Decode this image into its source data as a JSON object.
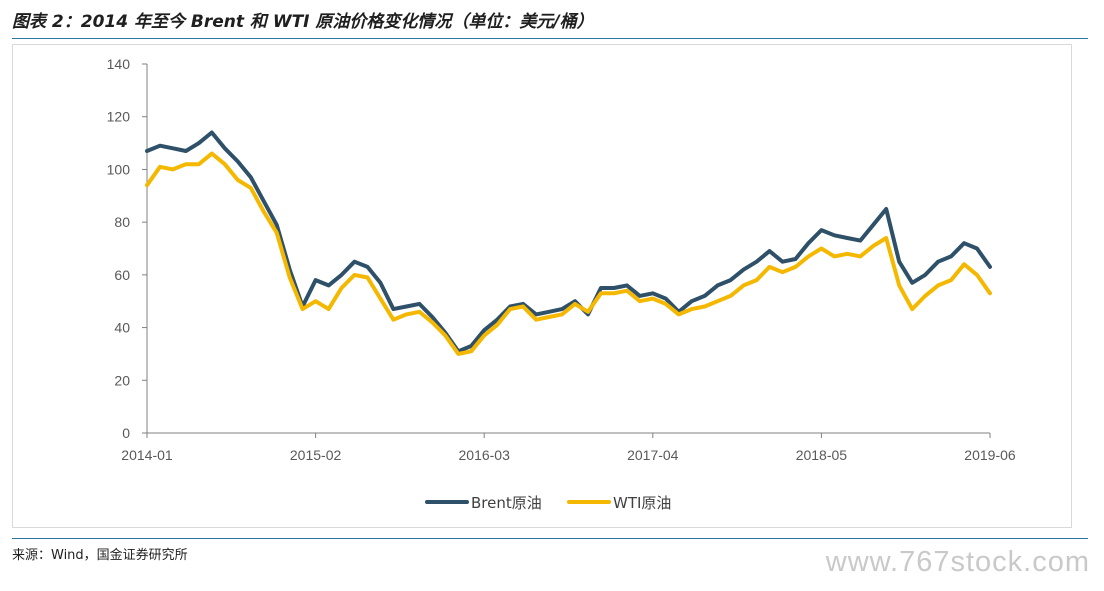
{
  "title": "图表 2：2014 年至今 Brent 和 WTI 原油价格变化情况（单位：美元/桶）",
  "source": "来源：Wind，国金证券研究所",
  "watermark": "www.767stock.com",
  "colors": {
    "brent": "#2e5068",
    "wti": "#f5b800",
    "rule": "#2a7aa8",
    "axis": "#808080"
  },
  "chart_data": {
    "type": "line",
    "title": "",
    "xlabel": "",
    "ylabel": "",
    "ylim": [
      0,
      140
    ],
    "yticks": [
      0,
      20,
      40,
      60,
      80,
      100,
      120,
      140
    ],
    "xticks": [
      "2014-01",
      "2015-02",
      "2016-03",
      "2017-04",
      "2018-05",
      "2019-06"
    ],
    "grid": false,
    "legend_position": "bottom",
    "x": [
      "2014-01",
      "2014-02",
      "2014-03",
      "2014-04",
      "2014-05",
      "2014-06",
      "2014-07",
      "2014-08",
      "2014-09",
      "2014-10",
      "2014-11",
      "2014-12",
      "2015-01",
      "2015-02",
      "2015-03",
      "2015-04",
      "2015-05",
      "2015-06",
      "2015-07",
      "2015-08",
      "2015-09",
      "2015-10",
      "2015-11",
      "2015-12",
      "2016-01",
      "2016-02",
      "2016-03",
      "2016-04",
      "2016-05",
      "2016-06",
      "2016-07",
      "2016-08",
      "2016-09",
      "2016-10",
      "2016-11",
      "2016-12",
      "2017-01",
      "2017-02",
      "2017-03",
      "2017-04",
      "2017-05",
      "2017-06",
      "2017-07",
      "2017-08",
      "2017-09",
      "2017-10",
      "2017-11",
      "2017-12",
      "2018-01",
      "2018-02",
      "2018-03",
      "2018-04",
      "2018-05",
      "2018-06",
      "2018-07",
      "2018-08",
      "2018-09",
      "2018-10",
      "2018-11",
      "2018-12",
      "2019-01",
      "2019-02",
      "2019-03",
      "2019-04",
      "2019-05",
      "2019-06"
    ],
    "series": [
      {
        "name": "Brent原油",
        "values": [
          107,
          109,
          108,
          107,
          110,
          114,
          108,
          103,
          97,
          88,
          79,
          62,
          48,
          58,
          56,
          60,
          65,
          63,
          57,
          47,
          48,
          49,
          44,
          38,
          31,
          33,
          39,
          43,
          48,
          49,
          45,
          46,
          47,
          50,
          45,
          55,
          55,
          56,
          52,
          53,
          51,
          46,
          50,
          52,
          56,
          58,
          62,
          65,
          69,
          65,
          66,
          72,
          77,
          75,
          74,
          73,
          79,
          85,
          65,
          57,
          60,
          65,
          67,
          72,
          70,
          63
        ]
      },
      {
        "name": "WTI原油",
        "values": [
          94,
          101,
          100,
          102,
          102,
          106,
          102,
          96,
          93,
          84,
          76,
          59,
          47,
          50,
          47,
          55,
          60,
          59,
          51,
          43,
          45,
          46,
          42,
          37,
          30,
          31,
          37,
          41,
          47,
          48,
          43,
          44,
          45,
          49,
          46,
          53,
          53,
          54,
          50,
          51,
          49,
          45,
          47,
          48,
          50,
          52,
          56,
          58,
          63,
          61,
          63,
          67,
          70,
          67,
          68,
          67,
          71,
          74,
          56,
          47,
          52,
          56,
          58,
          64,
          60,
          53
        ]
      }
    ]
  }
}
